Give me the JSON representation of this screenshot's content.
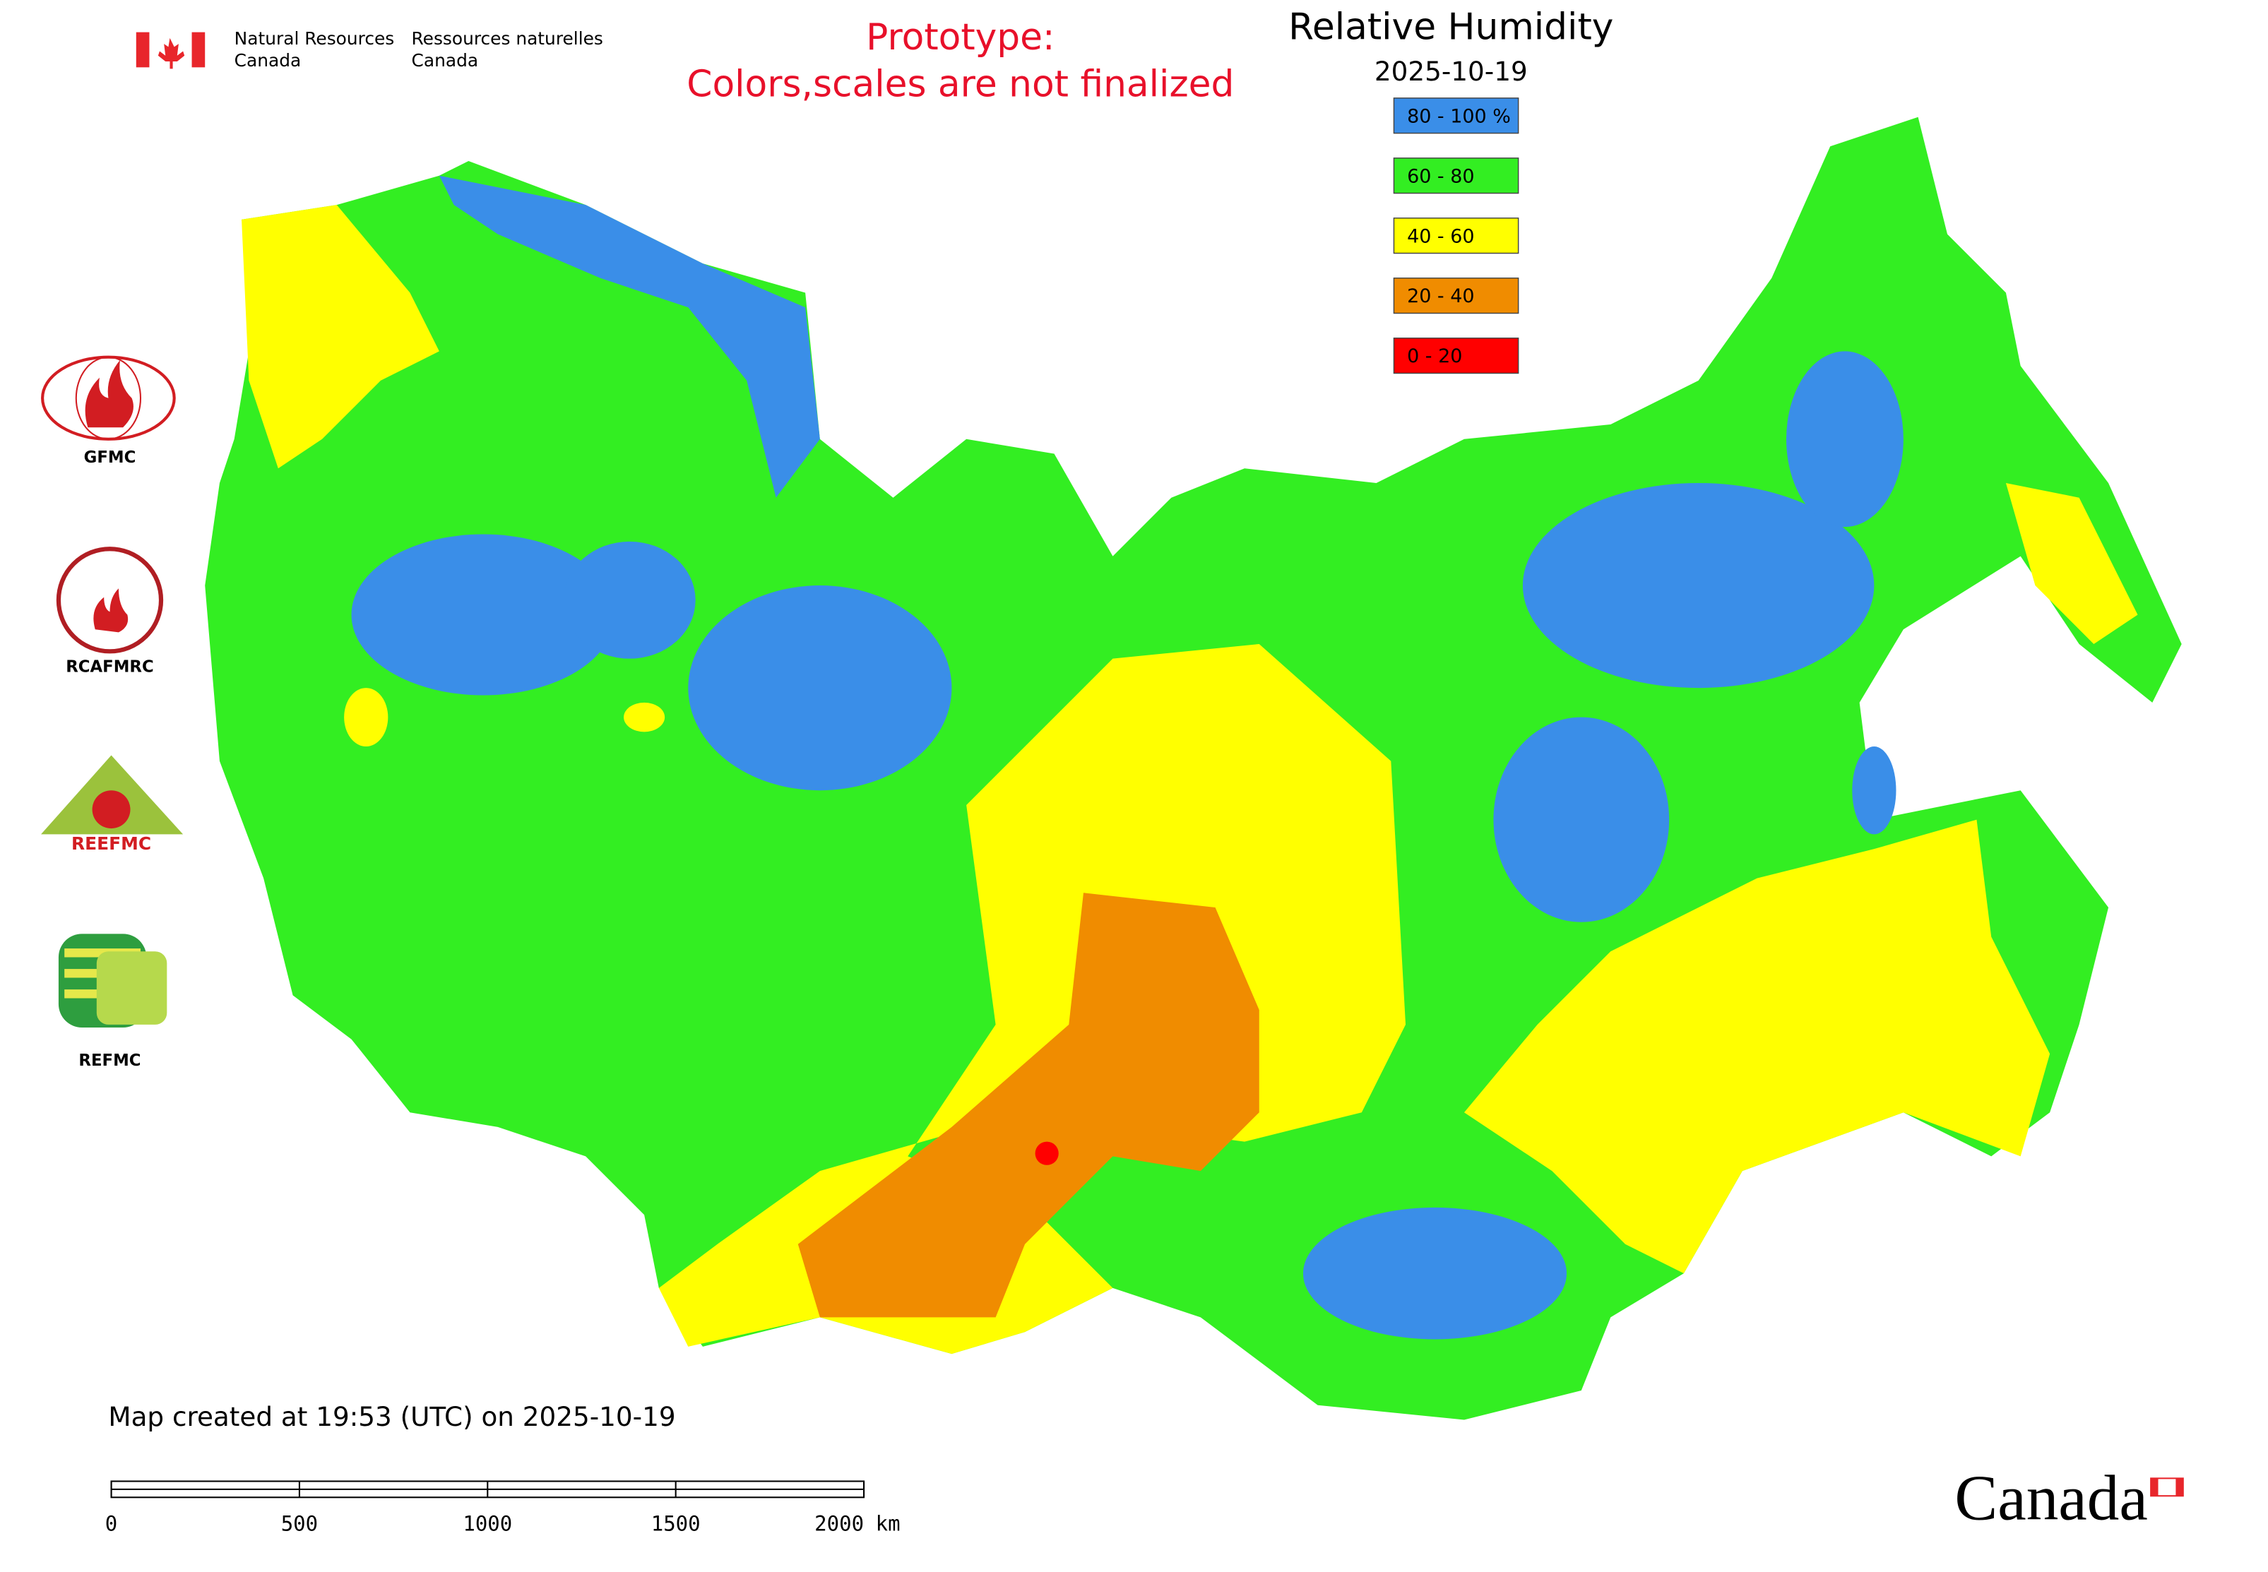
{
  "header": {
    "org_en_1": "Natural Resources",
    "org_en_2": "Canada",
    "org_fr_1": "Ressources naturelles",
    "org_fr_2": "Canada",
    "notice_1": "Prototype:",
    "notice_2": "Colors,scales are not finalized"
  },
  "title": "Relative Humidity",
  "date": "2025-10-19",
  "legend": [
    {
      "label": "80 - 100 %",
      "color": "#3a8ee8"
    },
    {
      "label": "60 - 80",
      "color": "#33ee22"
    },
    {
      "label": "40 - 60",
      "color": "#ffff00"
    },
    {
      "label": "20 - 40",
      "color": "#f08c00"
    },
    {
      "label": "0 - 20",
      "color": "#ff0000"
    }
  ],
  "logos": [
    "GFMC",
    "RCAFMRC",
    "REEFMC",
    "REFMC"
  ],
  "footer": "Map created at 19:53 (UTC) on 2025-10-19",
  "scale_bar": {
    "ticks": [
      0,
      500,
      1000,
      1500,
      2000
    ],
    "unit": "km"
  },
  "wordmark": "Canada"
}
